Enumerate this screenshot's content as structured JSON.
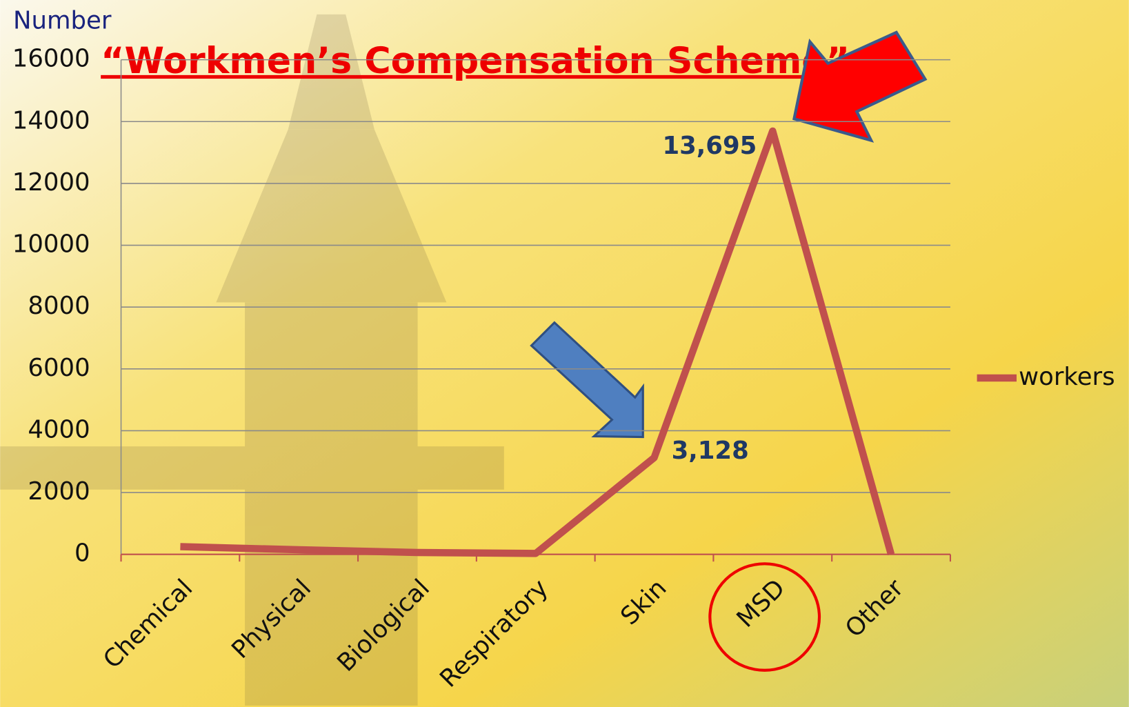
{
  "chart_data": {
    "type": "line",
    "title": "“Workmen’s Compensation Scheme”",
    "y_label": "Number",
    "categories": [
      "Chemical",
      "Physical",
      "Biological",
      "Respiratory",
      "Skin",
      "MSD",
      "Other"
    ],
    "series": [
      {
        "name": "workers",
        "color": "#c0504d",
        "values": [
          250,
          150,
          60,
          30,
          3128,
          13695,
          0
        ],
        "value_labels": [
          null,
          null,
          null,
          null,
          "3,128",
          "13,695",
          null
        ]
      }
    ],
    "ylim": [
      0,
      16000
    ],
    "yticks": [
      0,
      2000,
      4000,
      6000,
      8000,
      10000,
      12000,
      14000,
      16000
    ],
    "grid": true,
    "legend": "right"
  }
}
